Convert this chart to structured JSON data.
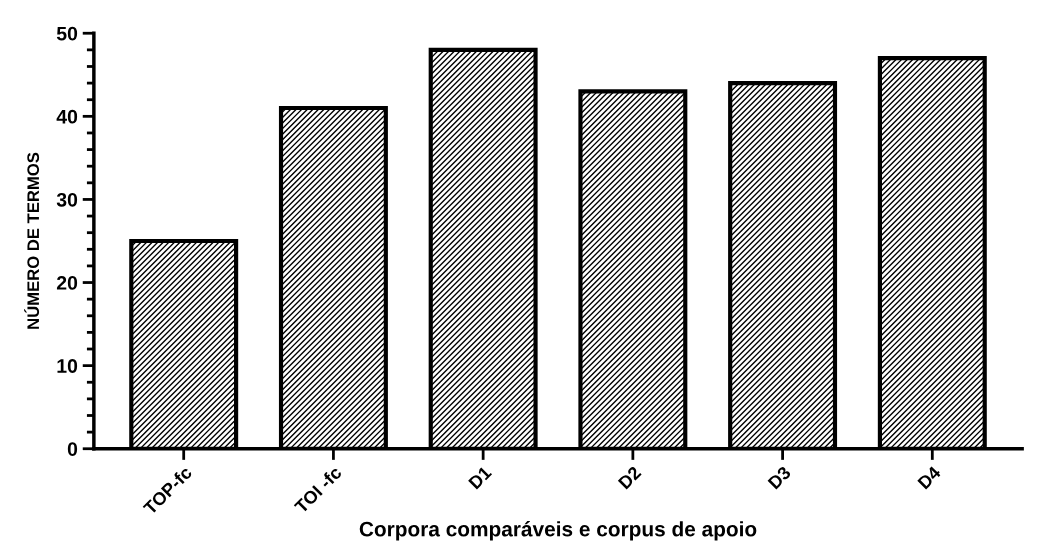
{
  "chart_data": {
    "type": "bar",
    "xlabel": "Corpora comparáveis e corpus de apoio",
    "ylabel": "NÚMERO DE TERMOS",
    "categories": [
      "TOP-fc",
      "TOI -fc",
      "D1",
      "D2",
      "D3",
      "D4"
    ],
    "values": [
      25,
      41,
      48,
      43,
      44,
      47
    ],
    "color": "#000000",
    "ylim": [
      0,
      50
    ],
    "yticks": [
      0,
      10,
      20,
      30,
      40,
      50
    ],
    "grid": false,
    "legend": false
  }
}
